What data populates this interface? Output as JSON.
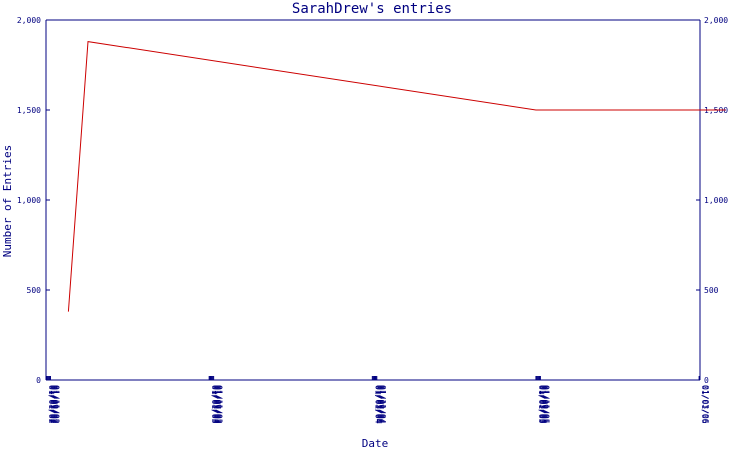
{
  "chart_data": {
    "type": "line",
    "title": "SarahDrew's entries",
    "xlabel": "Date",
    "ylabel": "Number of Entries",
    "ylim": [
      0,
      2000
    ],
    "yticks": [
      0,
      500,
      1000,
      1500,
      2000
    ],
    "ytick_labels": [
      "0",
      "500",
      "1,000",
      "1,500",
      "2,000"
    ],
    "xticks": [
      "01/01/02",
      "01/03/02",
      "01/05/02",
      "01/07/02",
      "01/09/02",
      "01/11/02",
      "01/01/03",
      "01/03/03",
      "01/05/03",
      "01/07/03",
      "01/09/03",
      "01/11/03",
      "01/01/04",
      "01/03/04",
      "01/05/04",
      "01/07/04",
      "01/09/04",
      "01/11/04",
      "01/01/05",
      "01/03/05",
      "01/05/05",
      "01/07/05",
      "01/09/05",
      "01/11/05",
      "01/01/06",
      "01/03/06"
    ],
    "colors": {
      "axis": "#000080",
      "series": "#cc0000"
    },
    "grid": false,
    "series": [
      {
        "x": [
          "2002-02-20",
          "2002-04-05",
          "2005-01-01",
          "2006-03-01"
        ],
        "y": [
          380,
          1880,
          1500,
          1500
        ]
      }
    ]
  }
}
